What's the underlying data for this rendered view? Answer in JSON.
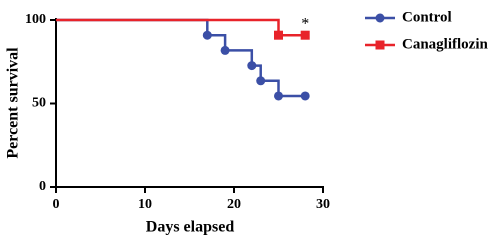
{
  "chart_data": {
    "type": "line",
    "step": true,
    "x_label": "Days elapsed",
    "y_label": "Percent survival",
    "xlim": [
      0,
      30
    ],
    "xticks": [
      0,
      10,
      20,
      30
    ],
    "ylim": [
      0,
      100
    ],
    "yticks": [
      0,
      50,
      100
    ],
    "legend": "right",
    "series": [
      {
        "name": "Control",
        "color": "#3b4fa6",
        "marker": "circle",
        "x": [
          0,
          17,
          19,
          22,
          23,
          25,
          28
        ],
        "values": [
          100,
          90.9,
          81.8,
          72.7,
          63.6,
          54.5,
          54.5
        ]
      },
      {
        "name": "Canagliflozin",
        "color": "#e8232a",
        "marker": "square",
        "x": [
          0,
          25,
          28
        ],
        "values": [
          100,
          90.9,
          90.9
        ]
      }
    ],
    "annotations": [
      {
        "text": "*",
        "x": 28,
        "y": 96
      }
    ]
  }
}
